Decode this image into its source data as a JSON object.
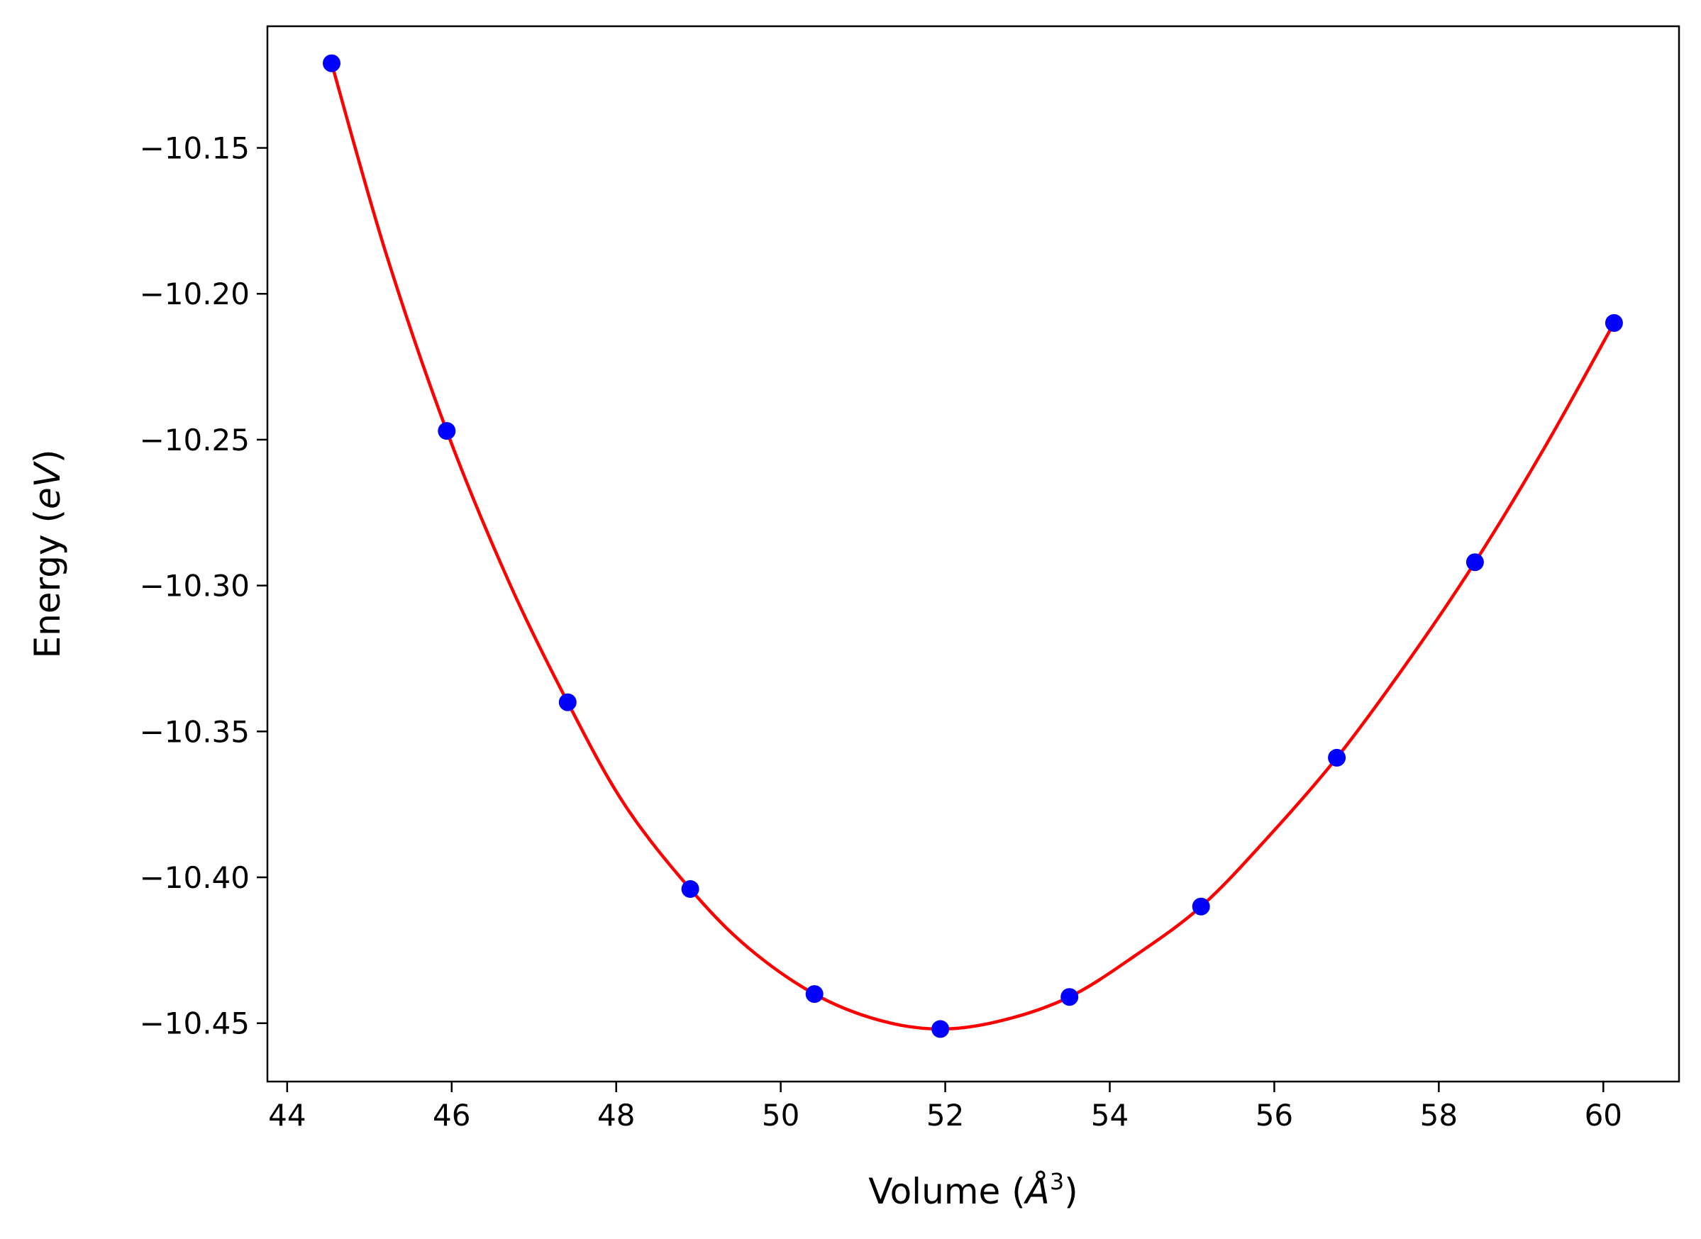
{
  "chart_data": {
    "type": "scatter",
    "title": "",
    "xlabel": "Volume (Å³)",
    "ylabel": "Energy (eV)",
    "xlabel_parts": {
      "prefix": "Volume (",
      "symbol": "Å",
      "exponent": "3",
      "suffix": ")"
    },
    "ylabel_parts": {
      "prefix": "Energy (",
      "unit": "eV",
      "suffix": ")"
    },
    "xlim": [
      43.76,
      60.92
    ],
    "ylim": [
      -10.47,
      -10.1083
    ],
    "x_ticks": [
      44,
      46,
      48,
      50,
      52,
      54,
      56,
      58,
      60
    ],
    "x_tick_labels": [
      "44",
      "46",
      "48",
      "50",
      "52",
      "54",
      "56",
      "58",
      "60"
    ],
    "y_ticks": [
      -10.15,
      -10.2,
      -10.25,
      -10.3,
      -10.35,
      -10.4,
      -10.45
    ],
    "y_tick_labels": [
      "−10.15",
      "−10.20",
      "−10.25",
      "−10.30",
      "−10.35",
      "−10.40",
      "−10.45"
    ],
    "grid": false,
    "series": [
      {
        "kind": "points",
        "color": "#0000ff",
        "x": [
          44.54,
          45.94,
          47.41,
          48.9,
          50.41,
          51.94,
          53.51,
          55.11,
          56.76,
          58.44,
          60.13
        ],
        "y": [
          -10.121,
          -10.247,
          -10.34,
          -10.404,
          -10.44,
          -10.452,
          -10.441,
          -10.41,
          -10.359,
          -10.292,
          -10.21
        ]
      },
      {
        "kind": "fit-curve",
        "color": "#ff0000",
        "x": [
          44.54,
          45.2,
          45.94,
          46.7,
          47.41,
          48.1,
          48.9,
          49.6,
          50.41,
          51.2,
          51.94,
          52.7,
          53.51,
          54.3,
          55.11,
          55.9,
          56.76,
          57.6,
          58.44,
          59.3,
          60.13
        ],
        "y": [
          -10.121,
          -10.186,
          -10.247,
          -10.299,
          -10.34,
          -10.375,
          -10.404,
          -10.424,
          -10.44,
          -10.449,
          -10.452,
          -10.449,
          -10.441,
          -10.427,
          -10.41,
          -10.387,
          -10.359,
          -10.327,
          -10.292,
          -10.252,
          -10.21
        ]
      }
    ]
  }
}
